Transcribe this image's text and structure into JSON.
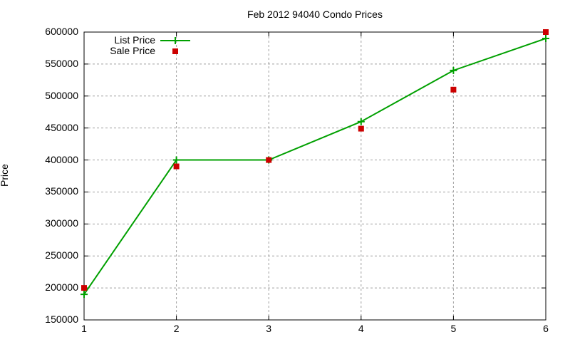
{
  "chart_data": {
    "type": "line",
    "title": "Feb 2012 94040 Condo Prices",
    "xlabel": "",
    "ylabel": "Price",
    "x": [
      1,
      2,
      3,
      4,
      5,
      6
    ],
    "xlim": [
      1,
      6
    ],
    "ylim": [
      150000,
      600000
    ],
    "x_ticks": [
      "1",
      "2",
      "3",
      "4",
      "5",
      "6"
    ],
    "y_ticks": [
      "150000",
      "200000",
      "250000",
      "300000",
      "350000",
      "400000",
      "450000",
      "500000",
      "550000",
      "600000"
    ],
    "grid": true,
    "legend_position": "top-left",
    "series": [
      {
        "name": "List Price",
        "style": "linespoints",
        "marker": "plus",
        "color": "#009900",
        "values": [
          190000,
          400000,
          400000,
          460000,
          540000,
          590000
        ]
      },
      {
        "name": "Sale Price",
        "style": "points",
        "marker": "square",
        "color": "#cc0000",
        "values": [
          200000,
          390000,
          400000,
          449000,
          510000,
          600000
        ]
      }
    ]
  }
}
